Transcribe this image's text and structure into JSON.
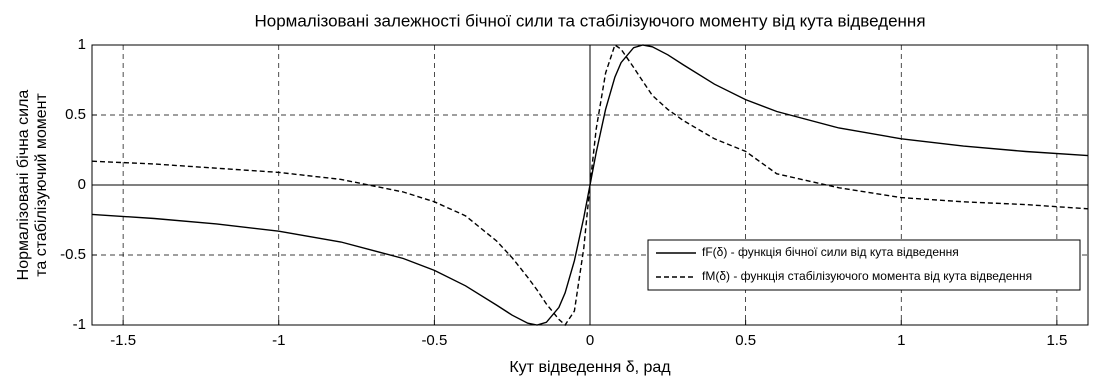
{
  "chart_data": {
    "type": "line",
    "title": "Нормалізовані залежності бічної сили та стабілізуючого моменту від кута відведення",
    "xlabel": "Кут відведення δ, рад",
    "ylabel": [
      "Нормалізовані бічна сила",
      "та стабілізуючий момент"
    ],
    "x": [
      -1.6,
      -1.4,
      -1.2,
      -1.0,
      -0.8,
      -0.6,
      -0.5,
      -0.4,
      -0.3,
      -0.25,
      -0.2,
      -0.17,
      -0.14,
      -0.1,
      -0.08,
      -0.05,
      -0.02,
      0,
      0.02,
      0.05,
      0.08,
      0.1,
      0.14,
      0.17,
      0.2,
      0.25,
      0.3,
      0.4,
      0.5,
      0.6,
      0.8,
      1.0,
      1.2,
      1.4,
      1.6
    ],
    "series": [
      {
        "name": "fF(δ) - функція бічної сили від кута відведення",
        "color": "#000000",
        "dash": "solid",
        "values": [
          -0.21,
          -0.239,
          -0.278,
          -0.33,
          -0.407,
          -0.525,
          -0.61,
          -0.72,
          -0.858,
          -0.93,
          -0.987,
          -1.0,
          -0.981,
          -0.874,
          -0.771,
          -0.541,
          -0.232,
          0,
          0.232,
          0.541,
          0.771,
          0.874,
          0.981,
          1.0,
          0.987,
          0.93,
          0.858,
          0.72,
          0.61,
          0.525,
          0.407,
          0.33,
          0.278,
          0.239,
          0.21
        ]
      },
      {
        "name": "fM(δ) - функція стабілізуючого момента від кута відведення",
        "color": "#000000",
        "dash": "dashed",
        "values": [
          0.17,
          0.15,
          0.12,
          0.09,
          0.04,
          -0.05,
          -0.12,
          -0.22,
          -0.4,
          -0.52,
          -0.66,
          -0.75,
          -0.85,
          -0.96,
          -1.0,
          -0.9,
          -0.45,
          0,
          0.4,
          0.8,
          1.0,
          0.97,
          0.84,
          0.74,
          0.64,
          0.54,
          0.46,
          0.33,
          0.24,
          0.08,
          -0.02,
          -0.09,
          -0.12,
          -0.14,
          -0.17
        ]
      }
    ],
    "xlim": [
      -1.6,
      1.6
    ],
    "ylim": [
      -1,
      1
    ],
    "xticks": [
      -1.5,
      -1,
      -0.5,
      0,
      0.5,
      1,
      1.5
    ],
    "yticks": [
      -1,
      -0.5,
      0,
      0.5,
      1
    ],
    "grid": true,
    "legend": "lower right"
  }
}
